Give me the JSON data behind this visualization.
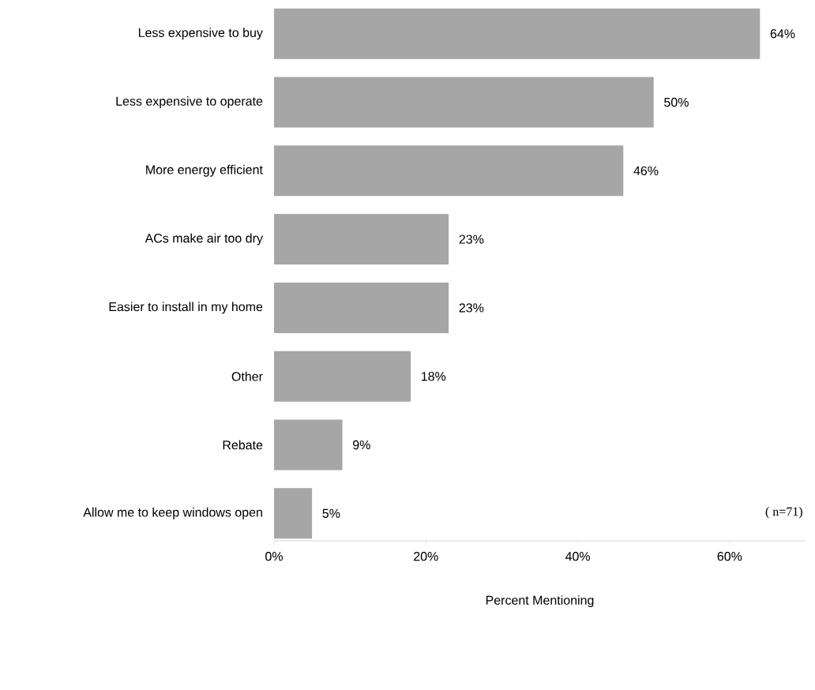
{
  "chart_data": {
    "type": "bar",
    "orientation": "horizontal",
    "categories": [
      "Less expensive to buy",
      "Less expensive to operate",
      "More energy efficient",
      "ACs make air too dry",
      "Easier to install in my home",
      "Other",
      "Rebate",
      "Allow me to keep windows open"
    ],
    "values": [
      64,
      50,
      46,
      23,
      23,
      18,
      9,
      5
    ],
    "value_labels": [
      "64%",
      "50%",
      "46%",
      "23%",
      "23%",
      "18%",
      "9%",
      "5%"
    ],
    "color": "#a6a6a6",
    "xlim": [
      0,
      70
    ],
    "xticks": [
      {
        "value": 0,
        "label": "0%"
      },
      {
        "value": 20,
        "label": "20%"
      },
      {
        "value": 40,
        "label": "40%"
      },
      {
        "value": 60,
        "label": "60%"
      }
    ],
    "xlabel": "Percent Mentioning",
    "annotations": [
      "( n=71)"
    ]
  }
}
